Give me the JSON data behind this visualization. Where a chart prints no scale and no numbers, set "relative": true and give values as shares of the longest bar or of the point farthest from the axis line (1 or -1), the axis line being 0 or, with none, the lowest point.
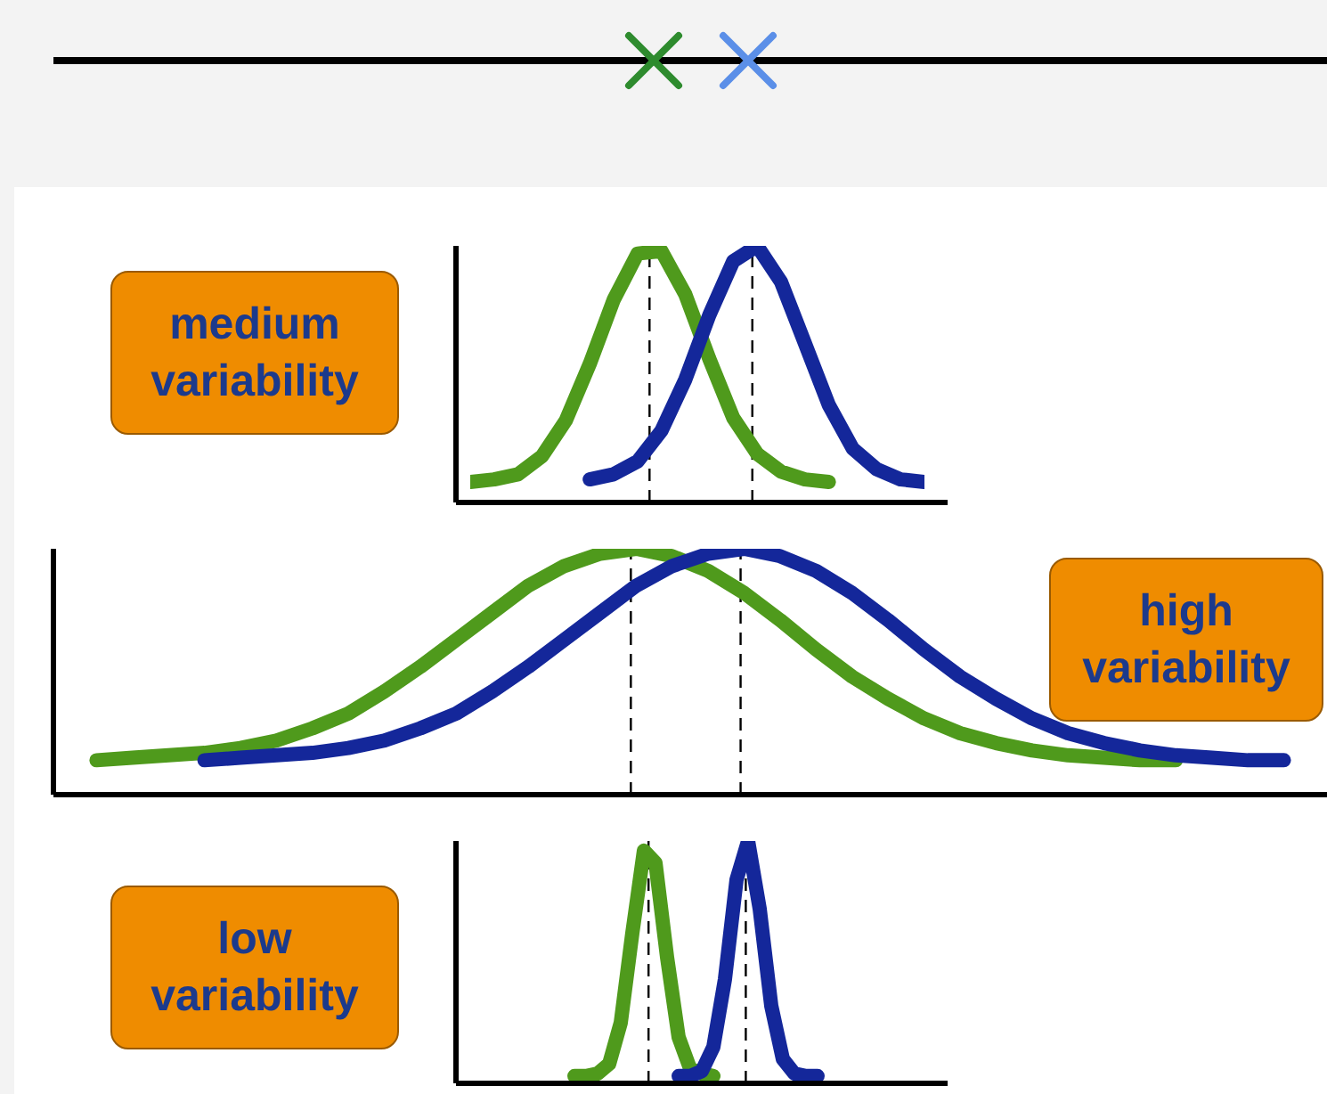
{
  "chart_data": [
    {
      "type": "line",
      "relative": true,
      "annotations": [
        "medium variability"
      ],
      "categories": [
        null,
        null,
        null,
        null,
        null,
        null,
        null,
        null,
        null,
        null,
        null,
        null,
        null,
        null,
        null,
        null,
        null,
        null,
        null,
        null
      ],
      "series": [
        {
          "color": "#4f9a1c",
          "values": [
            0.08,
            0.09,
            0.11,
            0.18,
            0.32,
            0.54,
            0.79,
            0.97,
            0.98,
            0.81,
            0.56,
            0.33,
            0.19,
            0.12,
            0.09,
            0.08,
            null,
            null,
            null,
            null
          ]
        },
        {
          "color": "#14279a",
          "values": [
            null,
            null,
            null,
            null,
            null,
            0.09,
            0.11,
            0.16,
            0.28,
            0.48,
            0.73,
            0.94,
            1.0,
            0.86,
            0.62,
            0.38,
            0.21,
            0.13,
            0.09,
            0.08
          ]
        }
      ]
    },
    {
      "type": "line",
      "relative": true,
      "annotations": [
        "high variability"
      ],
      "categories": [
        null,
        null,
        null,
        null,
        null,
        null,
        null,
        null,
        null,
        null,
        null,
        null,
        null,
        null,
        null,
        null,
        null,
        null,
        null,
        null,
        null,
        null,
        null,
        null,
        null,
        null,
        null,
        null,
        null,
        null,
        null,
        null,
        null,
        null,
        null,
        null
      ],
      "series": [
        {
          "color": "#4f9a1c",
          "values": [
            null,
            0.14,
            0.15,
            0.16,
            0.17,
            0.19,
            0.22,
            0.27,
            0.33,
            0.42,
            0.52,
            0.63,
            0.74,
            0.85,
            0.93,
            0.98,
            1.0,
            0.97,
            0.91,
            0.82,
            0.71,
            0.59,
            0.48,
            0.39,
            0.31,
            0.25,
            0.21,
            0.18,
            0.16,
            0.15,
            0.14,
            0.14,
            null,
            null,
            null,
            null
          ]
        },
        {
          "color": "#14279a",
          "values": [
            null,
            null,
            null,
            null,
            0.14,
            0.15,
            0.16,
            0.17,
            0.19,
            0.22,
            0.27,
            0.33,
            0.42,
            0.52,
            0.63,
            0.74,
            0.85,
            0.93,
            0.98,
            1.0,
            0.97,
            0.91,
            0.82,
            0.71,
            0.59,
            0.48,
            0.39,
            0.31,
            0.25,
            0.21,
            0.18,
            0.16,
            0.15,
            0.14,
            0.14,
            null
          ]
        }
      ]
    },
    {
      "type": "line",
      "relative": true,
      "annotations": [
        "low variability"
      ],
      "categories": [
        null,
        null,
        null,
        null,
        null,
        null,
        null,
        null,
        null,
        null,
        null,
        null,
        null,
        null,
        null,
        null,
        null,
        null,
        null,
        null,
        null,
        null,
        null,
        null,
        null,
        null,
        null,
        null,
        null,
        null,
        null,
        null,
        null,
        null,
        null,
        null,
        null,
        null,
        null,
        null,
        null
      ],
      "series": [
        {
          "color": "#4f9a1c",
          "values": [
            null,
            null,
            null,
            null,
            null,
            null,
            null,
            null,
            null,
            0.03,
            0.03,
            0.04,
            0.08,
            0.25,
            0.62,
            0.96,
            0.91,
            0.52,
            0.19,
            0.06,
            0.04,
            0.03,
            null,
            null,
            null,
            null,
            null,
            null,
            null,
            null,
            null,
            null,
            null,
            null,
            null,
            null,
            null,
            null,
            null,
            null,
            null
          ]
        },
        {
          "color": "#14279a",
          "values": [
            null,
            null,
            null,
            null,
            null,
            null,
            null,
            null,
            null,
            null,
            null,
            null,
            null,
            null,
            null,
            null,
            null,
            null,
            0.03,
            0.03,
            0.05,
            0.15,
            0.43,
            0.84,
            1.0,
            0.72,
            0.32,
            0.1,
            0.04,
            0.03,
            0.03,
            null,
            null,
            null,
            null,
            null,
            null,
            null,
            null,
            null,
            null
          ]
        }
      ]
    }
  ]
}
